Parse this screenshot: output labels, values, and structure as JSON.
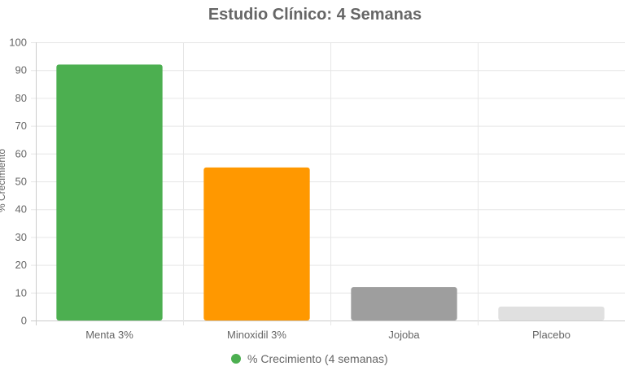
{
  "chart_data": {
    "type": "bar",
    "title": "Estudio Clínico: 4 Semanas",
    "ylabel": "% Crecimiento",
    "xlabel": "",
    "categories": [
      "Menta 3%",
      "Minoxidil 3%",
      "Jojoba",
      "Placebo"
    ],
    "series": [
      {
        "name": "% Crecimiento (4 semanas)",
        "values": [
          92,
          55,
          12,
          5
        ],
        "colors": [
          "#4caf50",
          "#ff9800",
          "#9e9e9e",
          "#e0e0e0"
        ]
      }
    ],
    "ylim": [
      0,
      100
    ],
    "yticks": [
      0,
      10,
      20,
      30,
      40,
      50,
      60,
      70,
      80,
      90,
      100
    ],
    "grid": true,
    "legend_position": "bottom"
  }
}
